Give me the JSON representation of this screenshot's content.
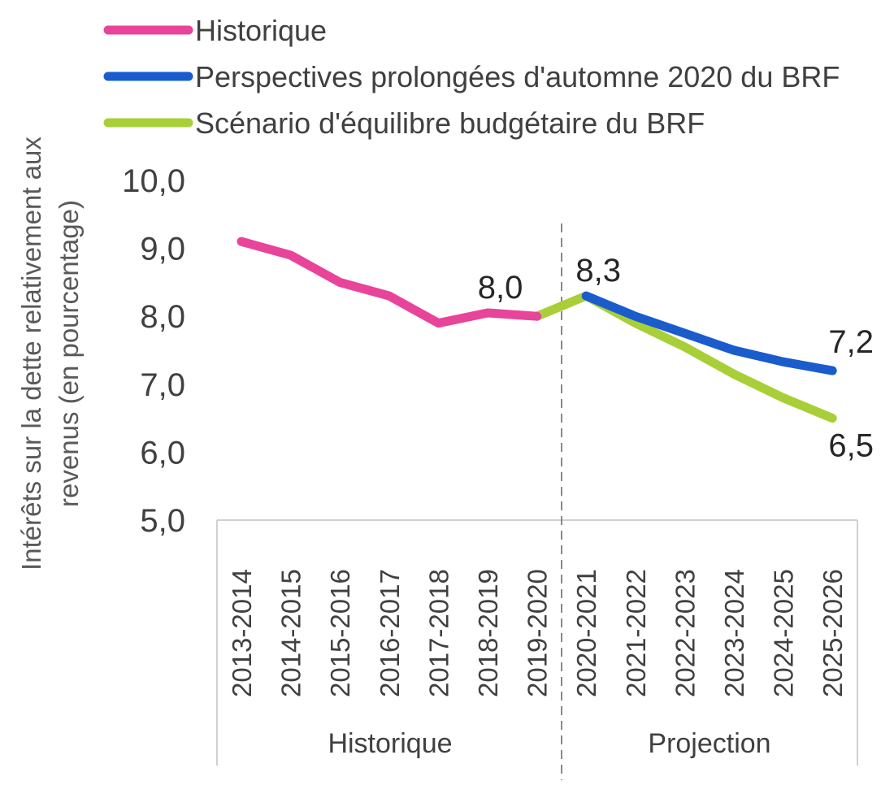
{
  "chart_data": {
    "type": "line",
    "title": "",
    "ylabel_lines": [
      "Intérêts sur la dette relativement aux",
      "revenus (en pourcentage)"
    ],
    "xlabel": "",
    "ylim": [
      5,
      10
    ],
    "y_ticks": [
      "10,0",
      "9,0",
      "8,0",
      "7,0",
      "6,0",
      "5,0"
    ],
    "y_tick_values": [
      10,
      9,
      8,
      7,
      6,
      5
    ],
    "categories": [
      "2013-2014",
      "2014-2015",
      "2015-2016",
      "2016-2017",
      "2017-2018",
      "2018-2019",
      "2019-2020",
      "2020-2021",
      "2021-2022",
      "2022-2023",
      "2023-2024",
      "2024-2025",
      "2025-2026"
    ],
    "groups": [
      {
        "label": "Historique",
        "from": 0,
        "to": 6
      },
      {
        "label": "Projection",
        "from": 7,
        "to": 12
      }
    ],
    "legend_position": "top-left",
    "grid": false,
    "series": [
      {
        "name": "Historique",
        "color": "#e8449a",
        "values": [
          9.1,
          8.9,
          8.5,
          8.3,
          7.9,
          8.05,
          8.0,
          null,
          null,
          null,
          null,
          null,
          null
        ]
      },
      {
        "name": "Perspectives prolongées d'automne 2020 du BRF",
        "color": "#1a5ccc",
        "values": [
          null,
          null,
          null,
          null,
          null,
          null,
          null,
          8.3,
          8.0,
          7.75,
          7.5,
          7.33,
          7.2
        ]
      },
      {
        "name": "Scénario d'équilibre budgétaire du BRF",
        "color": "#a8cf38",
        "values": [
          null,
          null,
          null,
          null,
          null,
          null,
          8.0,
          8.3,
          7.9,
          7.55,
          7.15,
          6.8,
          6.5
        ]
      }
    ],
    "data_labels": [
      {
        "text": "8,0",
        "series": 0,
        "index": 6
      },
      {
        "text": "8,3",
        "series": 2,
        "index": 7
      },
      {
        "text": "7,2",
        "series": 1,
        "index": 12
      },
      {
        "text": "6,5",
        "series": 2,
        "index": 12
      }
    ]
  }
}
